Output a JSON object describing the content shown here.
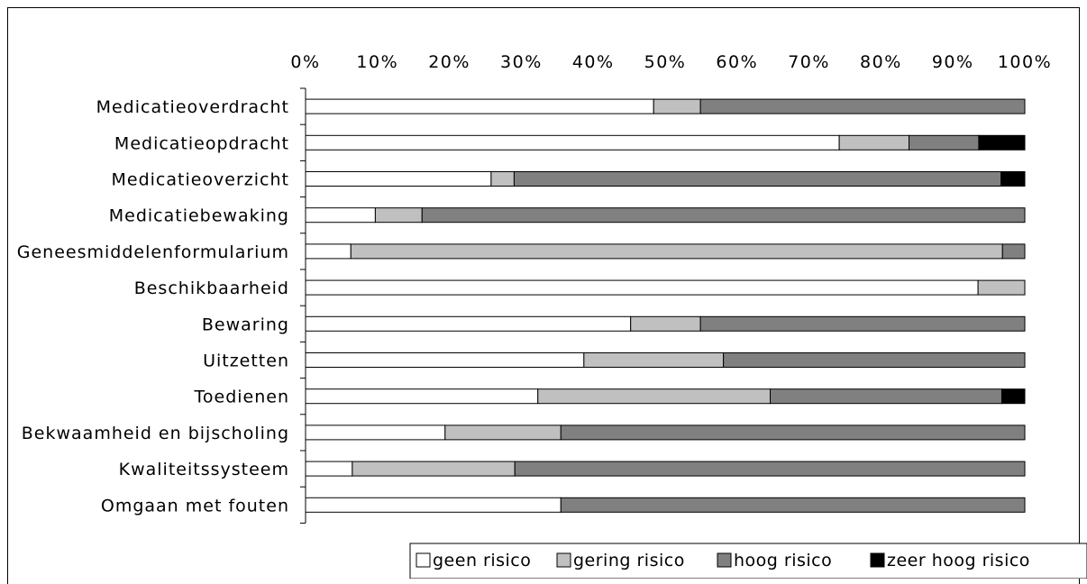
{
  "chart_data": {
    "type": "bar",
    "orientation": "horizontal",
    "stacked": "percent",
    "categories": [
      "Medicatieoverdracht",
      "Medicatieopdracht",
      "Medicatieoverzicht",
      "Medicatiebewaking",
      "Geneesmiddelenformularium",
      "Beschikbaarheid",
      "Bewaring",
      "Uitzetten",
      "Toedienen",
      "Bekwaamheid en bijscholing",
      "Kwaliteitssysteem",
      "Omgaan met fouten"
    ],
    "series": [
      {
        "name": "geen risico",
        "color": "#ffffff",
        "values": [
          48.4,
          74.2,
          25.8,
          9.7,
          6.3,
          93.5,
          45.2,
          38.7,
          32.3,
          19.4,
          6.5,
          35.5
        ]
      },
      {
        "name": "gering risico",
        "color": "#c0c0c0",
        "values": [
          6.5,
          9.7,
          3.2,
          6.5,
          90.6,
          6.5,
          9.7,
          19.4,
          32.3,
          16.1,
          22.6,
          0
        ]
      },
      {
        "name": "hoog risico",
        "color": "#808080",
        "values": [
          45.1,
          9.7,
          67.7,
          83.8,
          3.1,
          0,
          45.1,
          41.9,
          32.2,
          64.5,
          70.9,
          64.5
        ]
      },
      {
        "name": "zeer hoog risico",
        "color": "#000000",
        "values": [
          0,
          6.4,
          3.3,
          0,
          0,
          0,
          0,
          0,
          3.2,
          0,
          0,
          0
        ]
      }
    ],
    "x_ticks": [
      "0%",
      "10%",
      "20%",
      "30%",
      "40%",
      "50%",
      "60%",
      "70%",
      "80%",
      "90%",
      "100%"
    ],
    "xlim": [
      0,
      100
    ],
    "title": "",
    "xlabel": "",
    "ylabel": "",
    "legend_position": "bottom-right",
    "grid": false
  }
}
